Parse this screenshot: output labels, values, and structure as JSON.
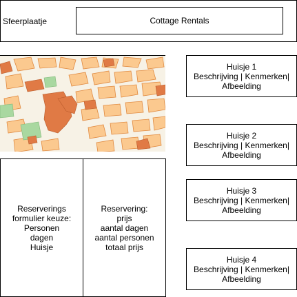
{
  "header": {
    "label": "Sfeerplaatje",
    "title": "Cottage Rentals"
  },
  "cottages": [
    {
      "label": "Huisje 1\nBeschrijving | Kenmerken|\nAfbeelding"
    },
    {
      "label": "Huisje 2\nBeschrijving | Kenmerken|\nAfbeelding"
    },
    {
      "label": "Huisje 3\nBeschrijving | Kenmerken|\nAfbeelding"
    },
    {
      "label": "Huisje 4\nBeschrijving | Kenmerken|\nAfbeelding"
    }
  ],
  "form_panel": {
    "text": "Reserverings\nformulier keuze:\nPersonen\ndagen\nHuisje"
  },
  "summary_panel": {
    "text": "Reservering:\nprijs\naantal dagen\naantal personen\ntotaal prijs"
  },
  "colors": {
    "map_background": "#f7f2e6",
    "map_blocks": "#fbc98f",
    "map_block_stroke": "#e0893f",
    "map_highlight": "#e07a45",
    "map_park": "#a9d8a0"
  }
}
